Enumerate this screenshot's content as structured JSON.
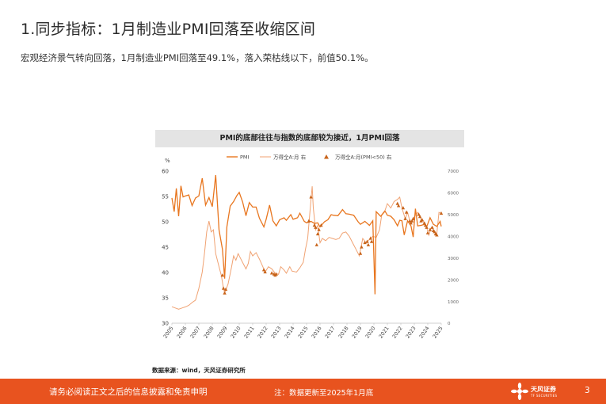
{
  "slide": {
    "title": "1.同步指标：1月制造业PMI回落至收缩区间",
    "subtitle": "宏观经济景气转向回落，1月制造业PMI回落至49.1%，落入荣枯线以下，前值50.1%。"
  },
  "chart_data": {
    "type": "line",
    "title": "PMI的底部往往与指数的底部较为接近，1月PMI回落",
    "left_unit": "%",
    "legend": [
      "PMI",
      "万得全A:月 右",
      "万得全A:月(PMI<50) 右"
    ],
    "ylim_left": [
      30,
      60
    ],
    "yticks_left": [
      30,
      35,
      40,
      45,
      50,
      55,
      60
    ],
    "ylim_right": [
      0,
      7000
    ],
    "yticks_right": [
      0,
      1000,
      2000,
      3000,
      4000,
      5000,
      6000,
      7000
    ],
    "xticks": [
      "2005",
      "2006",
      "2007",
      "2008",
      "2009",
      "2010",
      "2011",
      "2012",
      "2013",
      "2014",
      "2015",
      "2016",
      "2017",
      "2018",
      "2019",
      "2020",
      "2021",
      "2022",
      "2023",
      "2024",
      "2025"
    ],
    "colors": {
      "pmi": "#e8761f",
      "index": "#f0a272",
      "marker": "#c8641b"
    },
    "series": [
      {
        "name": "PMI",
        "axis": "left",
        "points": [
          [
            2005.0,
            54.7
          ],
          [
            2005.17,
            52.0
          ],
          [
            2005.33,
            56.6
          ],
          [
            2005.5,
            51.1
          ],
          [
            2005.67,
            57.1
          ],
          [
            2005.83,
            54.9
          ],
          [
            2006.0,
            55.1
          ],
          [
            2006.25,
            55.3
          ],
          [
            2006.5,
            53.2
          ],
          [
            2006.75,
            54.7
          ],
          [
            2007.0,
            55.1
          ],
          [
            2007.25,
            58.6
          ],
          [
            2007.5,
            53.3
          ],
          [
            2007.75,
            54.8
          ],
          [
            2008.0,
            53.0
          ],
          [
            2008.25,
            59.2
          ],
          [
            2008.5,
            48.4
          ],
          [
            2008.75,
            44.6
          ],
          [
            2008.92,
            38.8
          ],
          [
            2009.08,
            49.0
          ],
          [
            2009.33,
            53.1
          ],
          [
            2009.58,
            54.0
          ],
          [
            2009.83,
            55.2
          ],
          [
            2010.0,
            55.8
          ],
          [
            2010.25,
            53.9
          ],
          [
            2010.5,
            51.2
          ],
          [
            2010.75,
            53.8
          ],
          [
            2011.0,
            52.9
          ],
          [
            2011.25,
            52.9
          ],
          [
            2011.5,
            50.7
          ],
          [
            2011.83,
            49.0
          ],
          [
            2012.0,
            50.5
          ],
          [
            2012.25,
            53.3
          ],
          [
            2012.5,
            50.2
          ],
          [
            2012.75,
            49.2
          ],
          [
            2013.0,
            50.4
          ],
          [
            2013.33,
            50.8
          ],
          [
            2013.5,
            50.3
          ],
          [
            2013.83,
            51.4
          ],
          [
            2014.0,
            50.5
          ],
          [
            2014.33,
            50.8
          ],
          [
            2014.5,
            51.7
          ],
          [
            2014.83,
            50.1
          ],
          [
            2015.0,
            49.8
          ],
          [
            2015.33,
            50.1
          ],
          [
            2015.58,
            49.7
          ],
          [
            2015.83,
            49.8
          ],
          [
            2016.0,
            49.0
          ],
          [
            2016.33,
            50.0
          ],
          [
            2016.58,
            50.4
          ],
          [
            2016.83,
            51.4
          ],
          [
            2017.0,
            51.3
          ],
          [
            2017.33,
            51.2
          ],
          [
            2017.67,
            52.4
          ],
          [
            2017.92,
            51.6
          ],
          [
            2018.17,
            51.5
          ],
          [
            2018.5,
            51.3
          ],
          [
            2018.83,
            50.0
          ],
          [
            2019.0,
            49.5
          ],
          [
            2019.33,
            50.1
          ],
          [
            2019.67,
            49.3
          ],
          [
            2019.92,
            50.2
          ],
          [
            2020.08,
            35.7
          ],
          [
            2020.17,
            52.0
          ],
          [
            2020.5,
            51.1
          ],
          [
            2020.83,
            52.1
          ],
          [
            2021.0,
            51.3
          ],
          [
            2021.25,
            51.1
          ],
          [
            2021.5,
            50.4
          ],
          [
            2021.75,
            49.2
          ],
          [
            2021.92,
            50.3
          ],
          [
            2022.08,
            50.2
          ],
          [
            2022.25,
            47.4
          ],
          [
            2022.5,
            50.2
          ],
          [
            2022.75,
            49.2
          ],
          [
            2022.92,
            47.0
          ],
          [
            2023.08,
            52.6
          ],
          [
            2023.25,
            49.2
          ],
          [
            2023.5,
            49.3
          ],
          [
            2023.75,
            49.5
          ],
          [
            2023.92,
            49.0
          ],
          [
            2024.17,
            50.8
          ],
          [
            2024.42,
            49.5
          ],
          [
            2024.67,
            49.1
          ],
          [
            2024.92,
            50.1
          ],
          [
            2025.0,
            49.1
          ]
        ]
      },
      {
        "name": "万得全A:月 右",
        "axis": "right",
        "points": [
          [
            2005.0,
            760
          ],
          [
            2005.25,
            700
          ],
          [
            2005.5,
            640
          ],
          [
            2005.75,
            700
          ],
          [
            2006.0,
            750
          ],
          [
            2006.25,
            820
          ],
          [
            2006.5,
            950
          ],
          [
            2006.75,
            1060
          ],
          [
            2007.0,
            1600
          ],
          [
            2007.25,
            2350
          ],
          [
            2007.42,
            3200
          ],
          [
            2007.58,
            4200
          ],
          [
            2007.75,
            4700
          ],
          [
            2007.92,
            4200
          ],
          [
            2008.08,
            4300
          ],
          [
            2008.25,
            3200
          ],
          [
            2008.5,
            2600
          ],
          [
            2008.67,
            2200
          ],
          [
            2008.83,
            1600
          ],
          [
            2008.92,
            1380
          ],
          [
            2009.17,
            1800
          ],
          [
            2009.42,
            2550
          ],
          [
            2009.58,
            3100
          ],
          [
            2009.75,
            2900
          ],
          [
            2009.92,
            3200
          ],
          [
            2010.08,
            3000
          ],
          [
            2010.33,
            2700
          ],
          [
            2010.5,
            2500
          ],
          [
            2010.67,
            2750
          ],
          [
            2010.83,
            3300
          ],
          [
            2011.0,
            3100
          ],
          [
            2011.25,
            3250
          ],
          [
            2011.5,
            2950
          ],
          [
            2011.75,
            2600
          ],
          [
            2011.92,
            2350
          ],
          [
            2012.17,
            2600
          ],
          [
            2012.42,
            2500
          ],
          [
            2012.67,
            2300
          ],
          [
            2012.92,
            2250
          ],
          [
            2013.08,
            2600
          ],
          [
            2013.33,
            2450
          ],
          [
            2013.5,
            2300
          ],
          [
            2013.75,
            2600
          ],
          [
            2013.92,
            2400
          ],
          [
            2014.25,
            2350
          ],
          [
            2014.5,
            2550
          ],
          [
            2014.75,
            2800
          ],
          [
            2014.92,
            3400
          ],
          [
            2015.08,
            3900
          ],
          [
            2015.25,
            5100
          ],
          [
            2015.42,
            6300
          ],
          [
            2015.5,
            5300
          ],
          [
            2015.67,
            4300
          ],
          [
            2015.83,
            4500
          ],
          [
            2016.0,
            3700
          ],
          [
            2016.17,
            3900
          ],
          [
            2016.42,
            3800
          ],
          [
            2016.67,
            3950
          ],
          [
            2016.92,
            3900
          ],
          [
            2017.17,
            3850
          ],
          [
            2017.42,
            3900
          ],
          [
            2017.67,
            4150
          ],
          [
            2017.92,
            4200
          ],
          [
            2018.17,
            4000
          ],
          [
            2018.42,
            3700
          ],
          [
            2018.67,
            3400
          ],
          [
            2018.92,
            3100
          ],
          [
            2019.17,
            3900
          ],
          [
            2019.42,
            3700
          ],
          [
            2019.67,
            3850
          ],
          [
            2019.92,
            4000
          ],
          [
            2020.17,
            3950
          ],
          [
            2020.42,
            4300
          ],
          [
            2020.58,
            5000
          ],
          [
            2020.83,
            5200
          ],
          [
            2021.0,
            5500
          ],
          [
            2021.25,
            5300
          ],
          [
            2021.5,
            5600
          ],
          [
            2021.75,
            5700
          ],
          [
            2021.92,
            5800
          ],
          [
            2022.08,
            5300
          ],
          [
            2022.33,
            4800
          ],
          [
            2022.5,
            5100
          ],
          [
            2022.67,
            4700
          ],
          [
            2022.83,
            4650
          ],
          [
            2023.0,
            4900
          ],
          [
            2023.25,
            5100
          ],
          [
            2023.5,
            4800
          ],
          [
            2023.75,
            4600
          ],
          [
            2023.92,
            4400
          ],
          [
            2024.08,
            4050
          ],
          [
            2024.25,
            4400
          ],
          [
            2024.5,
            4250
          ],
          [
            2024.67,
            4100
          ],
          [
            2024.83,
            5100
          ],
          [
            2025.0,
            5050
          ]
        ]
      },
      {
        "name": "万得全A:月(PMI<50) 右",
        "axis": "right",
        "points": [
          [
            2008.75,
            2200
          ],
          [
            2008.83,
            1600
          ],
          [
            2008.92,
            1380
          ],
          [
            2009.0,
            1550
          ],
          [
            2011.83,
            2450
          ],
          [
            2011.92,
            2350
          ],
          [
            2012.42,
            2300
          ],
          [
            2012.58,
            2250
          ],
          [
            2012.67,
            2200
          ],
          [
            2012.75,
            2250
          ],
          [
            2015.17,
            4700
          ],
          [
            2015.33,
            5800
          ],
          [
            2015.58,
            4500
          ],
          [
            2015.67,
            4400
          ],
          [
            2015.75,
            3600
          ],
          [
            2015.83,
            4100
          ],
          [
            2015.92,
            4300
          ],
          [
            2016.08,
            4500
          ],
          [
            2019.0,
            3200
          ],
          [
            2019.08,
            3500
          ],
          [
            2019.33,
            3700
          ],
          [
            2019.5,
            3750
          ],
          [
            2019.58,
            3600
          ],
          [
            2019.75,
            3900
          ],
          [
            2019.83,
            3750
          ],
          [
            2021.75,
            5500
          ],
          [
            2021.83,
            5400
          ],
          [
            2022.17,
            5300
          ],
          [
            2022.33,
            4800
          ],
          [
            2022.42,
            5100
          ],
          [
            2022.67,
            4700
          ],
          [
            2022.75,
            4600
          ],
          [
            2022.83,
            4700
          ],
          [
            2022.92,
            4800
          ],
          [
            2023.33,
            5000
          ],
          [
            2023.42,
            4900
          ],
          [
            2023.5,
            4700
          ],
          [
            2023.58,
            4750
          ],
          [
            2023.75,
            4600
          ],
          [
            2023.83,
            4500
          ],
          [
            2023.92,
            4400
          ],
          [
            2024.0,
            4150
          ],
          [
            2024.17,
            4300
          ],
          [
            2024.33,
            4400
          ],
          [
            2024.42,
            4250
          ],
          [
            2024.5,
            4200
          ],
          [
            2024.58,
            4100
          ],
          [
            2024.67,
            4050
          ],
          [
            2025.0,
            5050
          ]
        ]
      }
    ]
  },
  "source": "数据来源：wind，天风证券研究所",
  "footer": {
    "disclaimer": "请务必阅读正文之后的信息披露和免责申明",
    "note": "注：数据更新至2025年1月底",
    "brand": "天风证券",
    "brand_en": "TF SECURITIES",
    "page": "3",
    "color": "#e8531f"
  }
}
